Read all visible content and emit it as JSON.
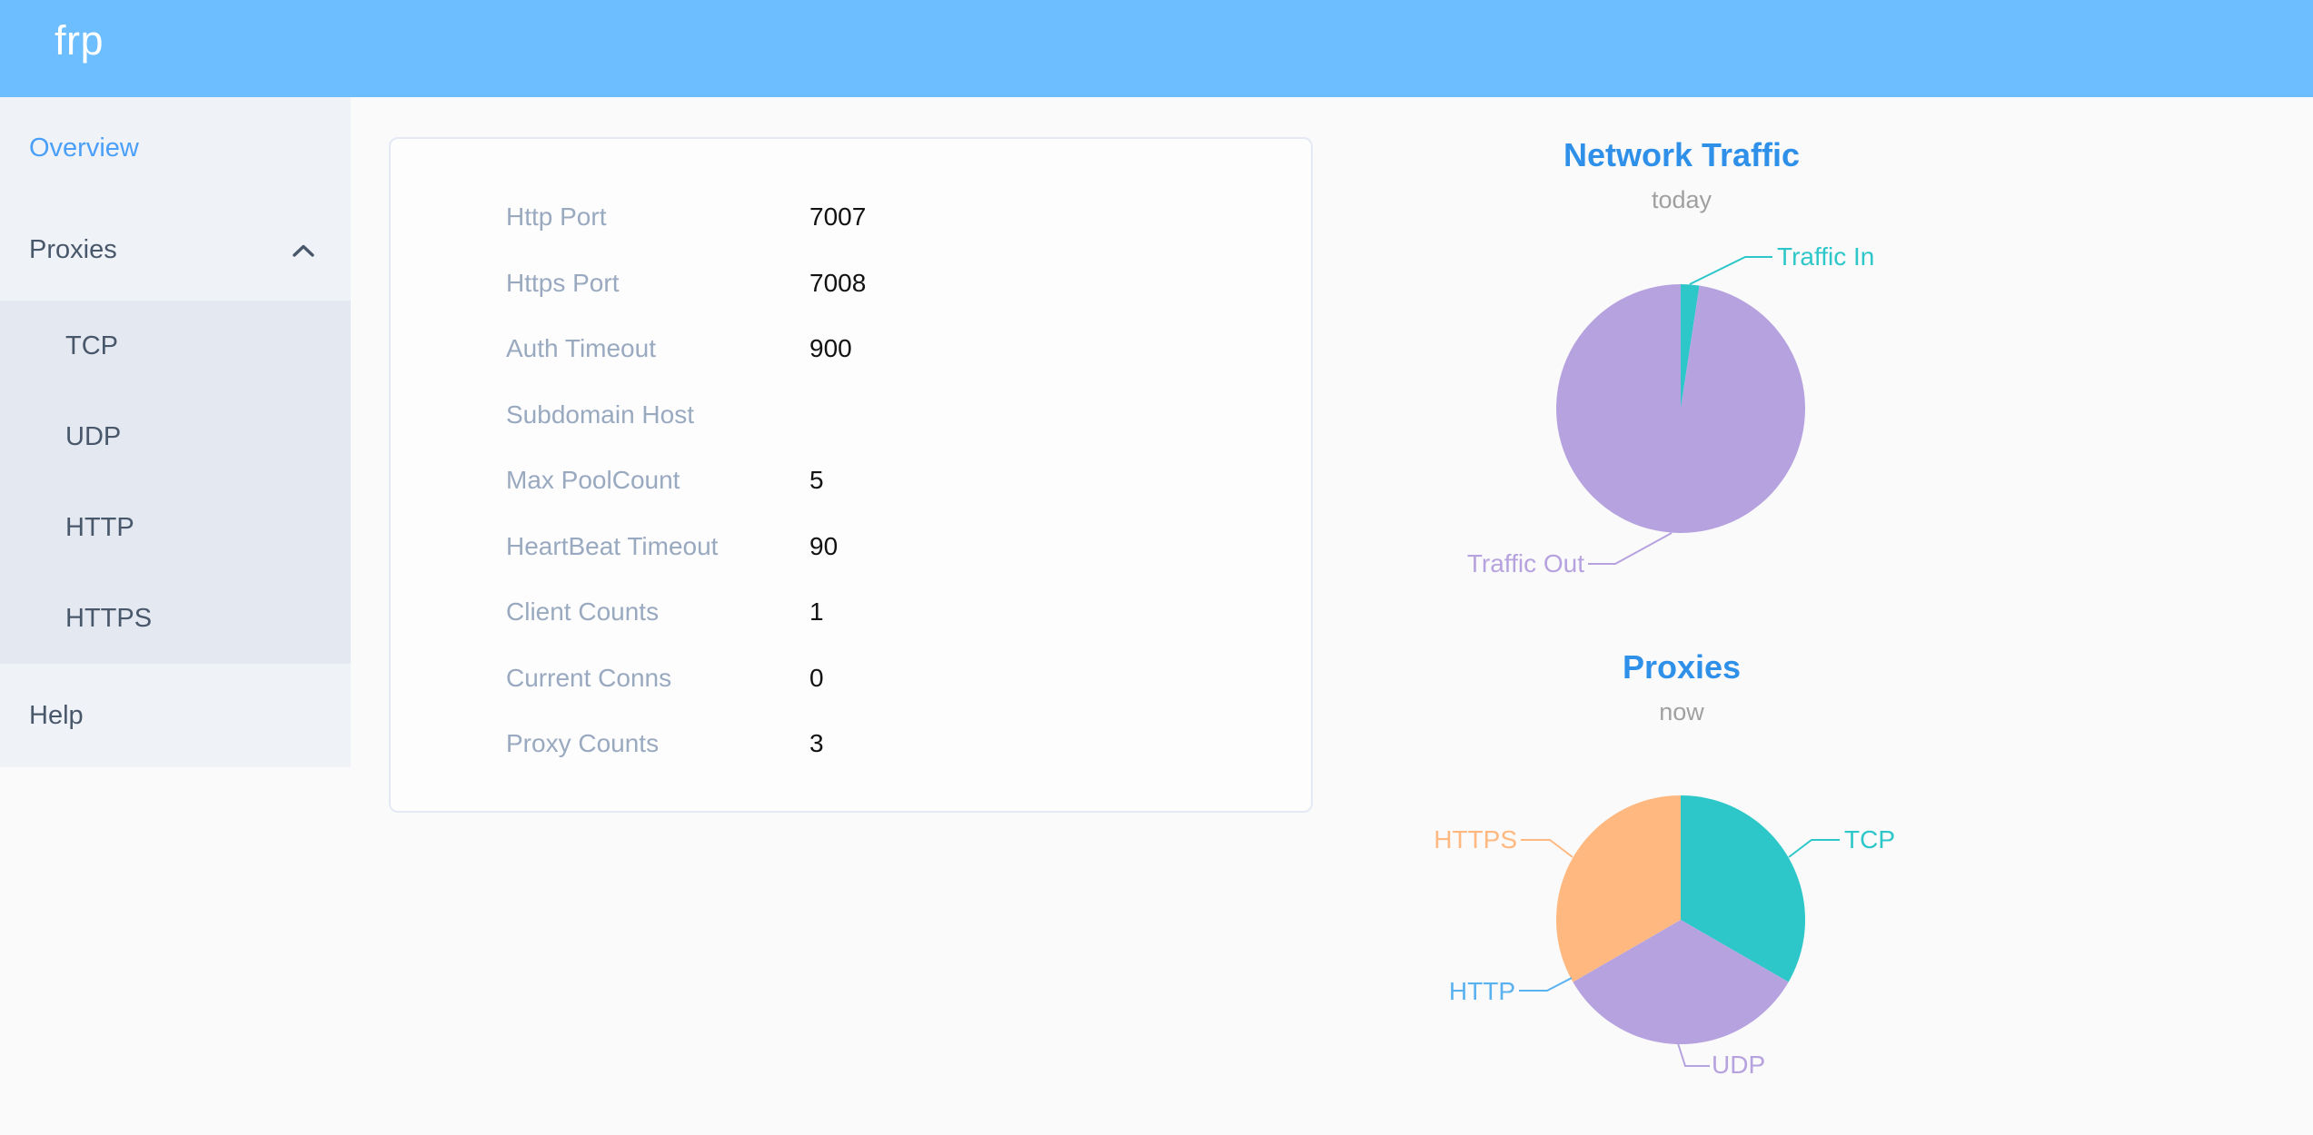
{
  "header": {
    "logo_text": "frp",
    "bg_color": "#6dbeff"
  },
  "sidebar": {
    "items": [
      {
        "label": "Overview",
        "active": true
      },
      {
        "label": "Proxies",
        "expanded": true
      },
      {
        "label": "Help"
      }
    ],
    "proxies_children": [
      {
        "label": "TCP"
      },
      {
        "label": "UDP"
      },
      {
        "label": "HTTP"
      },
      {
        "label": "HTTPS"
      }
    ],
    "icons": {
      "proxies_expand": "chevron-up"
    },
    "active_color": "#4a9ff8",
    "text_color": "#48576a"
  },
  "overview_card": {
    "rows": [
      {
        "label": "Http Port",
        "value": "7007"
      },
      {
        "label": "Https Port",
        "value": "7008"
      },
      {
        "label": "Auth Timeout",
        "value": "900"
      },
      {
        "label": "Subdomain Host",
        "value": ""
      },
      {
        "label": "Max PoolCount",
        "value": "5"
      },
      {
        "label": "HeartBeat Timeout",
        "value": "90"
      },
      {
        "label": "Client Counts",
        "value": "1"
      },
      {
        "label": "Current Conns",
        "value": "0"
      },
      {
        "label": "Proxy Counts",
        "value": "3"
      }
    ]
  },
  "chart_data": [
    {
      "type": "pie",
      "title": "Network Traffic",
      "subtitle": "today",
      "legend_position": "outside-labels-with-leader-lines",
      "series": [
        {
          "name": "Traffic In",
          "value": 2.4,
          "unit": "percent-of-total",
          "color": "#2ec7c9"
        },
        {
          "name": "Traffic Out",
          "value": 97.6,
          "unit": "percent-of-total",
          "color": "#b6a2de"
        }
      ]
    },
    {
      "type": "pie",
      "title": "Proxies",
      "subtitle": "now",
      "legend_position": "outside-labels-with-leader-lines",
      "series": [
        {
          "name": "TCP",
          "value": 1,
          "color": "#2ec7c9"
        },
        {
          "name": "UDP",
          "value": 1,
          "color": "#b6a2de"
        },
        {
          "name": "HTTP",
          "value": 0,
          "color": "#5ab1ef"
        },
        {
          "name": "HTTPS",
          "value": 1,
          "color": "#ffb980"
        }
      ]
    }
  ]
}
